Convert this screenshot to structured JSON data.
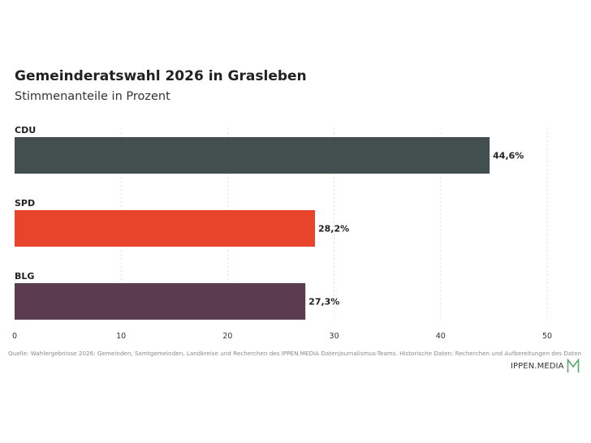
{
  "header": {
    "title": "Gemeinderatswahl 2026 in Grasleben",
    "subtitle": "Stimmenanteile in Prozent"
  },
  "chart_data": {
    "type": "bar",
    "orientation": "horizontal",
    "categories": [
      "CDU",
      "SPD",
      "BLG"
    ],
    "values": [
      44.6,
      28.2,
      27.3
    ],
    "value_labels": [
      "44,6%",
      "28,2%",
      "27,3%"
    ],
    "colors": [
      "#434f4f",
      "#e8432b",
      "#5b3b4f"
    ],
    "xlim": [
      0,
      50
    ],
    "x_ticks": [
      0,
      10,
      20,
      30,
      40,
      50
    ],
    "grid": true,
    "title": "Gemeinderatswahl 2026 in Grasleben",
    "subtitle": "Stimmenanteile in Prozent",
    "xlabel": "",
    "ylabel": ""
  },
  "footer": {
    "source": "Quelle: Wahlergebnisse 2026: Gemeinden, Samtgemeinden, Landkreise und Recherchen des IPPEN.MEDIA Datenjournalismus-Teams. Historische Daten: Recherchen und Aufbereitungen des Daten",
    "logo_text": "IPPEN.MEDIA",
    "logo_color": "#5aa86a"
  }
}
